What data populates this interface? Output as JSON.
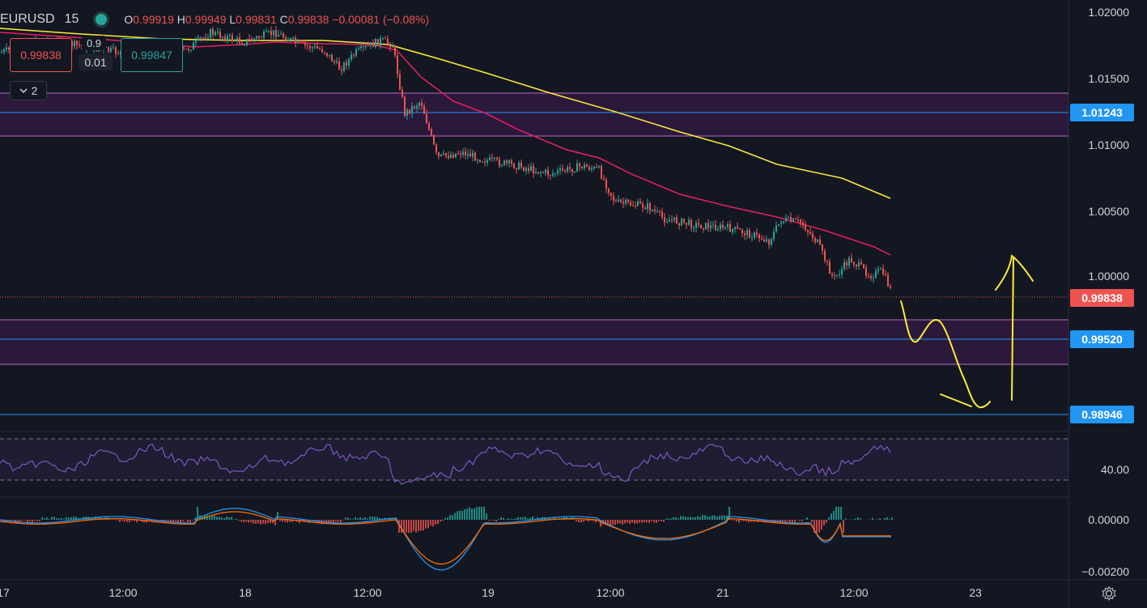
{
  "header": {
    "symbol": "EURUSD",
    "interval": "15",
    "o_label": "O",
    "o_value": "0.99919",
    "h_label": "H",
    "h_value": "0.99949",
    "l_label": "L",
    "l_value": "0.99831",
    "c_label": "C",
    "c_value": "0.99838",
    "change": "−0.00081 (−0.08%)"
  },
  "trade": {
    "sell_price": "0.99838",
    "buy_price": "0.99847",
    "spread_top": "0.9",
    "spread_bottom": "0.01"
  },
  "indicators_toggle": "2",
  "price_axis": {
    "labels": [
      "1.02000",
      "1.01500",
      "1.01000",
      "1.00500",
      "1.00000"
    ],
    "tags": [
      {
        "text": "1.01243",
        "color": "#2196f3"
      },
      {
        "text": "0.99838",
        "color": "#ef5350"
      },
      {
        "text": "0.99520",
        "color": "#2196f3"
      },
      {
        "text": "0.98946",
        "color": "#2196f3"
      }
    ]
  },
  "rsi_axis": {
    "label": "40.00"
  },
  "macd_axis": {
    "labels": [
      "0.00000",
      "−0.00200"
    ]
  },
  "time_axis": [
    "17",
    "12:00",
    "18",
    "12:00",
    "19",
    "12:00",
    "21",
    "12:00",
    "23"
  ],
  "colors": {
    "background": "#131722",
    "up": "#26a69a",
    "down": "#ef5350",
    "ma_fast": "#e91e63",
    "ma_slow": "#ffeb3b",
    "zone": "#9c27b0",
    "level": "#2196f3",
    "rsi": "#7e57c2",
    "macd": "#2196f3",
    "signal": "#ff6d00",
    "drawing": "#ffeb3b"
  },
  "icons": {
    "settings": "gear-icon",
    "collapse": "chevron-down-icon"
  }
}
